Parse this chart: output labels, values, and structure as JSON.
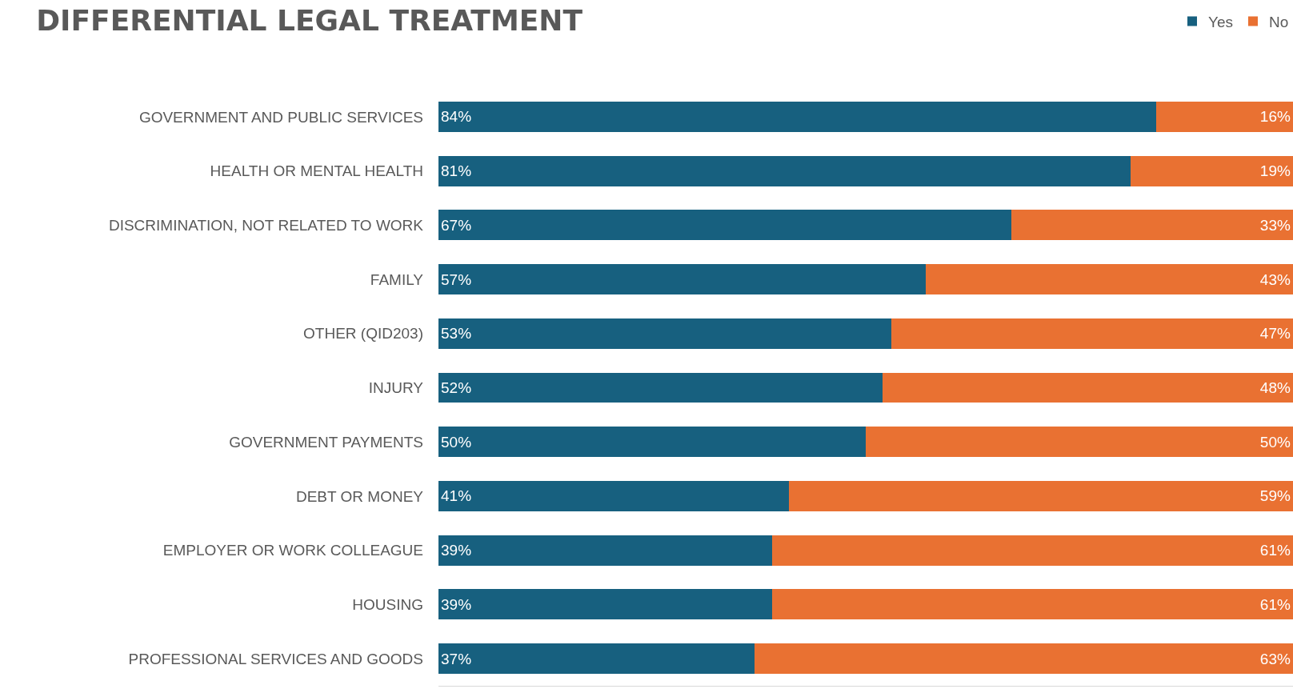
{
  "chart_data": {
    "type": "bar",
    "orientation": "horizontal",
    "stacked": true,
    "title": "DIFFERENTIAL LEGAL TREATMENT",
    "categories": [
      "GOVERNMENT AND PUBLIC SERVICES",
      "HEALTH OR MENTAL HEALTH",
      "DISCRIMINATION, NOT RELATED TO WORK",
      "FAMILY",
      "OTHER (QID203)",
      "INJURY",
      "GOVERNMENT PAYMENTS",
      "DEBT OR MONEY",
      "EMPLOYER OR WORK COLLEAGUE",
      "HOUSING",
      "PROFESSIONAL SERVICES AND GOODS"
    ],
    "series": [
      {
        "name": "Yes",
        "color": "#17607f",
        "values": [
          84,
          81,
          67,
          57,
          53,
          52,
          50,
          41,
          39,
          39,
          37
        ],
        "value_labels": [
          "84%",
          "81%",
          "67%",
          "57%",
          "53%",
          "52%",
          "50%",
          "41%",
          "39%",
          "39%",
          "37%"
        ]
      },
      {
        "name": "No",
        "color": "#e97132",
        "values": [
          16,
          19,
          33,
          43,
          47,
          48,
          50,
          59,
          61,
          61,
          63
        ],
        "value_labels": [
          "16%",
          "19%",
          "33%",
          "43%",
          "47%",
          "48%",
          "50%",
          "59%",
          "61%",
          "61%",
          "63%"
        ]
      }
    ],
    "xlim": [
      0,
      100
    ],
    "tick_labels": "y",
    "legend": "top right"
  }
}
